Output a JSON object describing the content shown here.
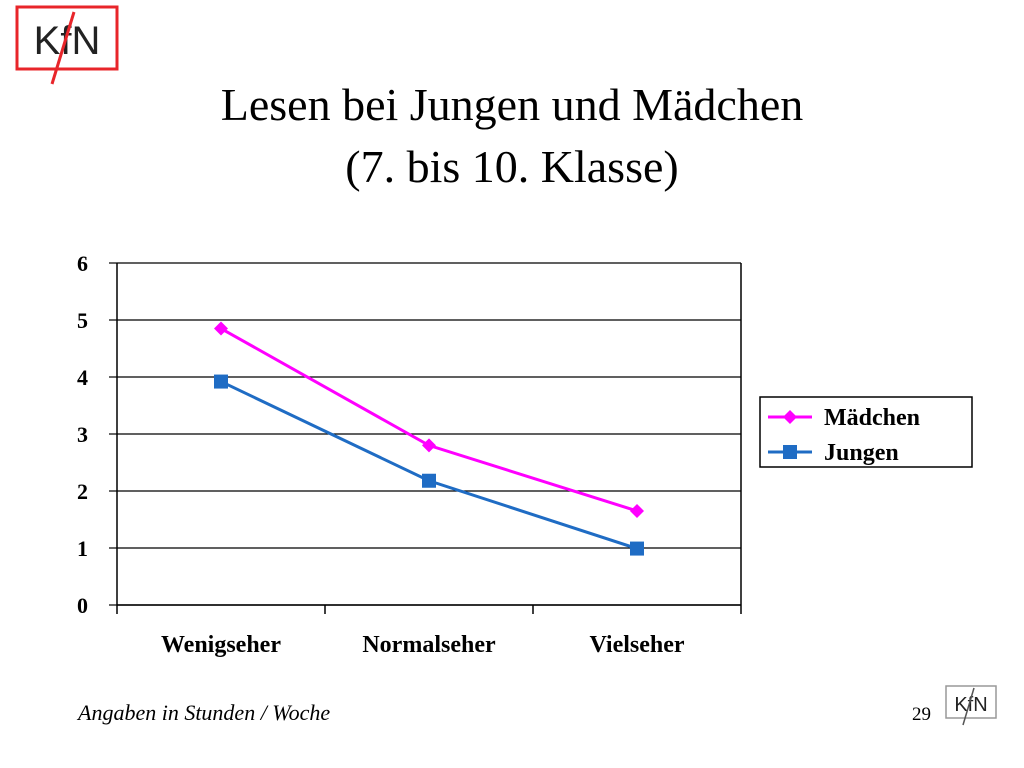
{
  "slide": {
    "title_line1": "Lesen bei Jungen und Mädchen",
    "title_line2": "(7. bis 10. Klasse)",
    "note": "Angaben in Stunden / Woche",
    "page_number": "29",
    "logo_text": "KfN"
  },
  "colors": {
    "logo_red": "#e8252a",
    "maedchen": "#ff00ff",
    "jungen": "#1f6cc4",
    "grid": "#000000"
  },
  "chart_data": {
    "type": "line",
    "title": "",
    "xlabel": "",
    "ylabel": "",
    "categories": [
      "Wenigseher",
      "Normalseher",
      "Vielseher"
    ],
    "ylim": [
      0,
      6
    ],
    "yticks": [
      0,
      1,
      2,
      3,
      4,
      5,
      6
    ],
    "grid": true,
    "legend_position": "right",
    "series": [
      {
        "name": "Mädchen",
        "marker": "diamond",
        "color": "#ff00ff",
        "values": [
          4.85,
          2.8,
          1.65
        ]
      },
      {
        "name": "Jungen",
        "marker": "square",
        "color": "#1f6cc4",
        "values": [
          3.92,
          2.18,
          0.99
        ]
      }
    ]
  }
}
